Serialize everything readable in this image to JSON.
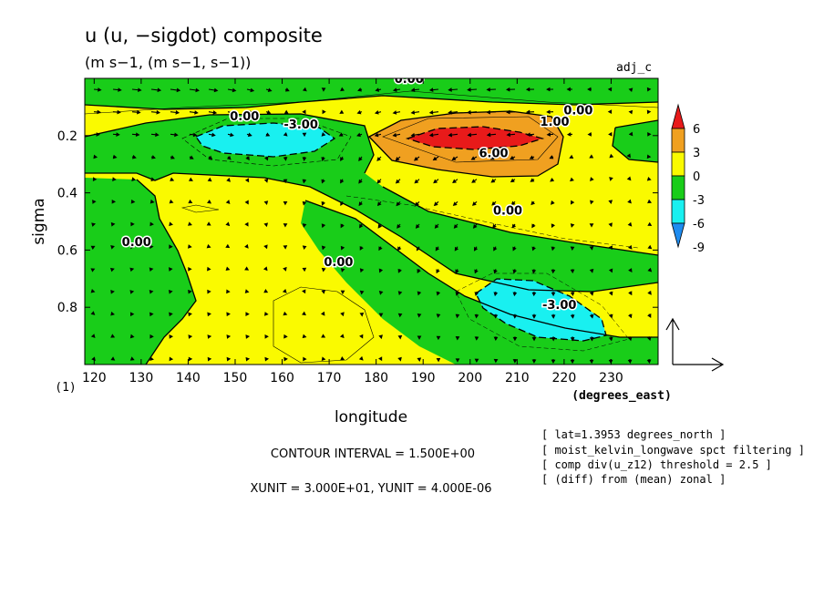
{
  "chart_data": {
    "type": "contour",
    "title": "u (u, −sigdot) composite",
    "subtitle": "(m s−1, (m s−1, s−1))",
    "tag": "adj_c",
    "xlabel": "longitude",
    "ylabel": "sigma",
    "x_units": "(degrees_east)",
    "y_index_label": "(1)",
    "xlim": [
      118,
      240
    ],
    "ylim": [
      1.0,
      0.0
    ],
    "x_ticks": [
      120,
      130,
      140,
      150,
      160,
      170,
      180,
      190,
      200,
      210,
      220,
      230
    ],
    "y_ticks": [
      0.2,
      0.4,
      0.6,
      0.8
    ],
    "colorbar": {
      "levels": [
        6,
        3,
        0,
        -3,
        -6,
        -9
      ],
      "colors": [
        "#e81a1a",
        "#f0a020",
        "#fafa00",
        "#19cd19",
        "#19f0f0",
        "#1e8cf0"
      ]
    },
    "contour_labels": [
      {
        "text": "0.00",
        "lon": 187,
        "sigma": 0.0
      },
      {
        "text": "0.00",
        "lon": 223,
        "sigma": 0.11
      },
      {
        "text": "1.00",
        "lon": 218,
        "sigma": 0.15
      },
      {
        "text": "0.00",
        "lon": 152,
        "sigma": 0.13
      },
      {
        "text": "-3.00",
        "lon": 164,
        "sigma": 0.16
      },
      {
        "text": "6.00",
        "lon": 205,
        "sigma": 0.26
      },
      {
        "text": "0.00",
        "lon": 208,
        "sigma": 0.46
      },
      {
        "text": "0.00",
        "lon": 129,
        "sigma": 0.57
      },
      {
        "text": "0.00",
        "lon": 172,
        "sigma": 0.64
      },
      {
        "text": "-3.00",
        "lon": 219,
        "sigma": 0.79
      }
    ],
    "extremes": [
      {
        "label": "max",
        "lon": 198,
        "sigma": 0.24,
        "value": 6
      },
      {
        "label": "min_upper",
        "lon": 158,
        "sigma": 0.24,
        "value": -6
      },
      {
        "label": "min_lower",
        "lon": 212,
        "sigma": 0.85,
        "value": -6
      }
    ]
  },
  "footer": {
    "contour_interval": "CONTOUR INTERVAL = 1.500E+00",
    "units": "XUNIT = 3.000E+01, YUNIT = 4.000E-06",
    "notes": [
      "[ lat=1.3953 degrees_north ]",
      "[ moist_kelvin_longwave spct filtering ]",
      "[ comp div(u_z12) threshold = 2.5 ]",
      "[ (diff) from (mean) zonal ]"
    ]
  }
}
